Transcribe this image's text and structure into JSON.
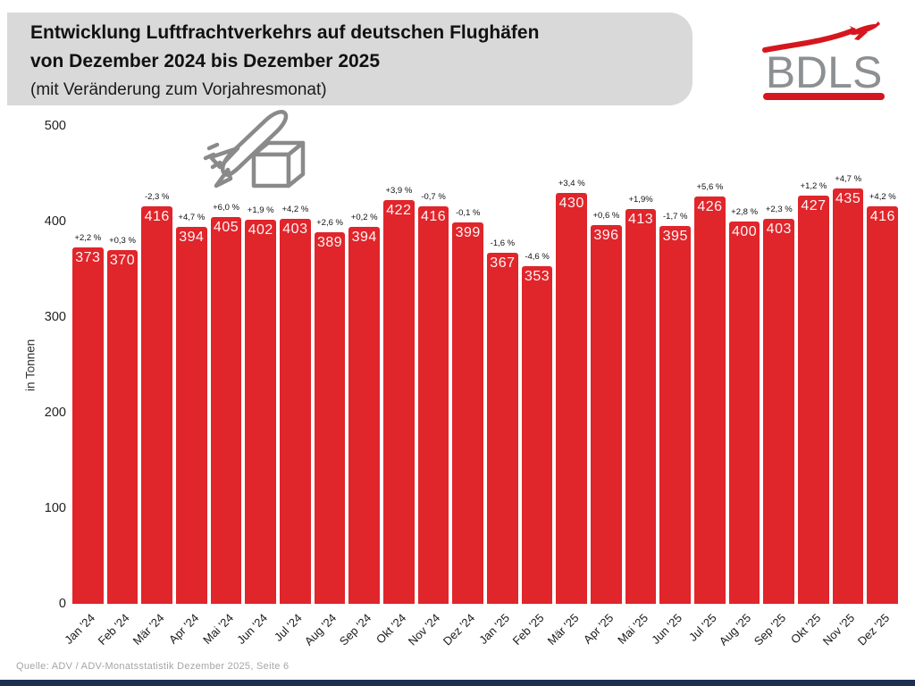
{
  "header": {
    "title_line1": "Entwicklung Luftfrachtverkehrs auf deutschen Flughäfen",
    "title_line2": "von Dezember 2024 bis Dezember 2025",
    "subtitle": "(mit Veränderung zum Vorjahresmonat)"
  },
  "logo": {
    "text": "BDLS"
  },
  "source": "Quelle: ADV / ADV-Monatsstatistik Dezember 2025, Seite 6",
  "colors": {
    "bar_red": "#e0252b",
    "logo_red": "#d6161e",
    "logo_gray": "#8d9093",
    "band_gray": "#d9d9d9",
    "footer_navy": "#1e2f52",
    "icon_gray": "#8a8a8a",
    "source_gray": "#a5a5a5"
  },
  "chart_data": {
    "type": "bar",
    "title": "Entwicklung Luftfrachtverkehrs auf deutschen Flughäfen von Dezember 2024 bis Dezember 2025 (mit Veränderung zum Vorjahresmonat)",
    "xlabel": "",
    "ylabel": "in Tonnen",
    "ylim": [
      0,
      500
    ],
    "yticks": [
      0,
      100,
      200,
      300,
      400,
      500
    ],
    "grid": false,
    "legend": "none",
    "categories": [
      "Jan '24",
      "Feb '24",
      "Mär '24",
      "Apr '24",
      "Mai '24",
      "Jun '24",
      "Jul '24",
      "Aug '24",
      "Sep '24",
      "Okt '24",
      "Nov '24",
      "Dez '24",
      "Jan '25",
      "Feb '25",
      "Mär '25",
      "Apr '25",
      "Mai '25",
      "Jun '25",
      "Jul '25",
      "Aug '25",
      "Sep '25",
      "Okt '25",
      "Nov '25",
      "Dez '25"
    ],
    "values": [
      373,
      370,
      416,
      394,
      405,
      402,
      403,
      389,
      394,
      422,
      416,
      399,
      367,
      353,
      430,
      396,
      413,
      395,
      426,
      400,
      403,
      427,
      435,
      416
    ],
    "change_labels": [
      "+2,2 %",
      "+0,3 %",
      "-2,3 %",
      "+4,7 %",
      "+6,0 %",
      "+1,9 %",
      "+4,2 %",
      "+2,6 %",
      "+0,2 %",
      "+3,9 %",
      "-0,7 %",
      "-0,1 %",
      "-1,6 %",
      "-4,6 %",
      "+3,4 %",
      "+0,6 %",
      "+1,9%",
      "-1,7 %",
      "+5,6 %",
      "+2,8 %",
      "+2,3 %",
      "+1,2 %",
      "+4,7 %",
      "+4,2 %"
    ]
  }
}
